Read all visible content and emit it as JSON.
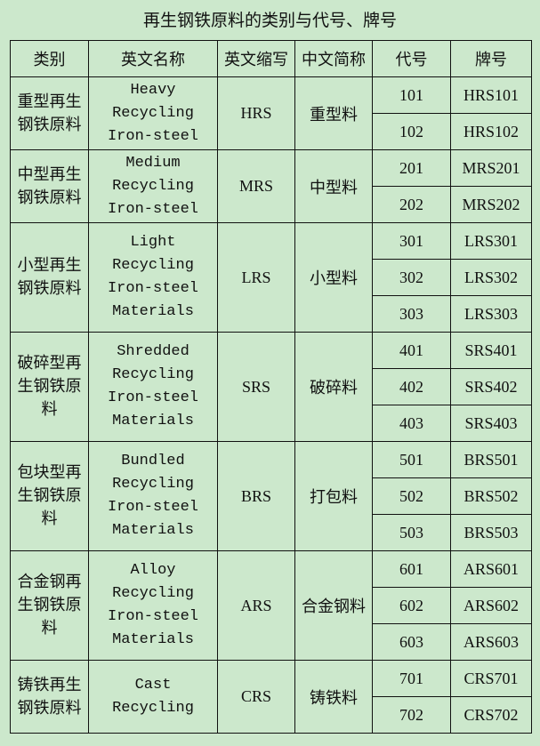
{
  "title": "再生钢铁原料的类别与代号、牌号",
  "headers": [
    "类别",
    "英文名称",
    "英文缩写",
    "中文简称",
    "代号",
    "牌号"
  ],
  "groups": [
    {
      "category": "重型再生钢铁原料",
      "english": [
        "Heavy",
        "Recycling",
        "Iron-steel"
      ],
      "abbr": "HRS",
      "cn_short": "重型料",
      "items": [
        {
          "code": "101",
          "brand": "HRS101"
        },
        {
          "code": "102",
          "brand": "HRS102"
        }
      ]
    },
    {
      "category": "中型再生钢铁原料",
      "english": [
        "Medium",
        "Recycling",
        "Iron-steel"
      ],
      "abbr": "MRS",
      "cn_short": "中型料",
      "items": [
        {
          "code": "201",
          "brand": "MRS201"
        },
        {
          "code": "202",
          "brand": "MRS202"
        }
      ]
    },
    {
      "category": "小型再生钢铁原料",
      "english": [
        "Light",
        "Recycling",
        "Iron-steel",
        "Materials"
      ],
      "abbr": "LRS",
      "cn_short": "小型料",
      "items": [
        {
          "code": "301",
          "brand": "LRS301"
        },
        {
          "code": "302",
          "brand": "LRS302"
        },
        {
          "code": "303",
          "brand": "LRS303"
        }
      ]
    },
    {
      "category": "破碎型再生钢铁原料",
      "english": [
        "Shredded",
        "Recycling",
        "Iron-steel",
        "Materials"
      ],
      "abbr": "SRS",
      "cn_short": "破碎料",
      "items": [
        {
          "code": "401",
          "brand": "SRS401"
        },
        {
          "code": "402",
          "brand": "SRS402"
        },
        {
          "code": "403",
          "brand": "SRS403"
        }
      ]
    },
    {
      "category": "包块型再生钢铁原料",
      "english": [
        "Bundled",
        "Recycling",
        "Iron-steel",
        "Materials"
      ],
      "abbr": "BRS",
      "cn_short": "打包料",
      "items": [
        {
          "code": "501",
          "brand": "BRS501"
        },
        {
          "code": "502",
          "brand": "BRS502"
        },
        {
          "code": "503",
          "brand": "BRS503"
        }
      ]
    },
    {
      "category": "合金钢再生钢铁原料",
      "english": [
        "Alloy",
        "Recycling",
        "Iron-steel",
        "Materials"
      ],
      "abbr": "ARS",
      "cn_short": "合金钢料",
      "items": [
        {
          "code": "601",
          "brand": "ARS601"
        },
        {
          "code": "602",
          "brand": "ARS602"
        },
        {
          "code": "603",
          "brand": "ARS603"
        }
      ]
    },
    {
      "category": "铸铁再生钢铁原料",
      "english": [
        "Cast",
        "Recycling"
      ],
      "abbr": "CRS",
      "cn_short": "铸铁料",
      "items": [
        {
          "code": "701",
          "brand": "CRS701"
        },
        {
          "code": "702",
          "brand": "CRS702"
        }
      ]
    }
  ]
}
